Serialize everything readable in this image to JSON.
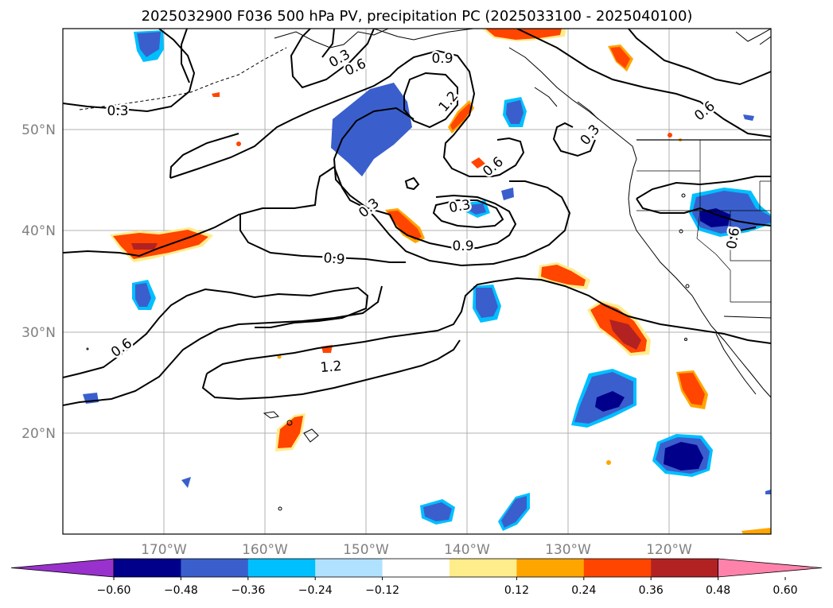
{
  "title": "2025032900 F036 500 hPa PV, precipitation PC (2025033100 - 2025040100)",
  "map": {
    "lon_labels": [
      "170°W",
      "160°W",
      "150°W",
      "140°W",
      "130°W",
      "120°W"
    ],
    "lat_labels": [
      "50°N",
      "40°N",
      "30°N",
      "20°N"
    ],
    "contour_labels": [
      "0.3",
      "0.6",
      "0.9",
      "1.2",
      "0.3",
      "0.6",
      "0.9",
      "1.2",
      "0.3",
      "0.9",
      "0.6",
      "0.3",
      "0.6",
      "0.6",
      "0.3"
    ],
    "colors": {
      "gridline": "#b0b0b0",
      "contour": "#000000",
      "coast": "#000000"
    }
  },
  "colorbar": {
    "ticks": [
      "−0.60",
      "−0.48",
      "−0.36",
      "−0.24",
      "−0.12",
      "0.12",
      "0.24",
      "0.36",
      "0.48",
      "0.60"
    ],
    "colors": [
      "#9932cc",
      "#00008b",
      "#3a5fcd",
      "#00bfff",
      "#b0e2ff",
      "#ffffff",
      "#ffec8b",
      "#ffa500",
      "#ff4500",
      "#b22222",
      "#ff82ab"
    ]
  }
}
